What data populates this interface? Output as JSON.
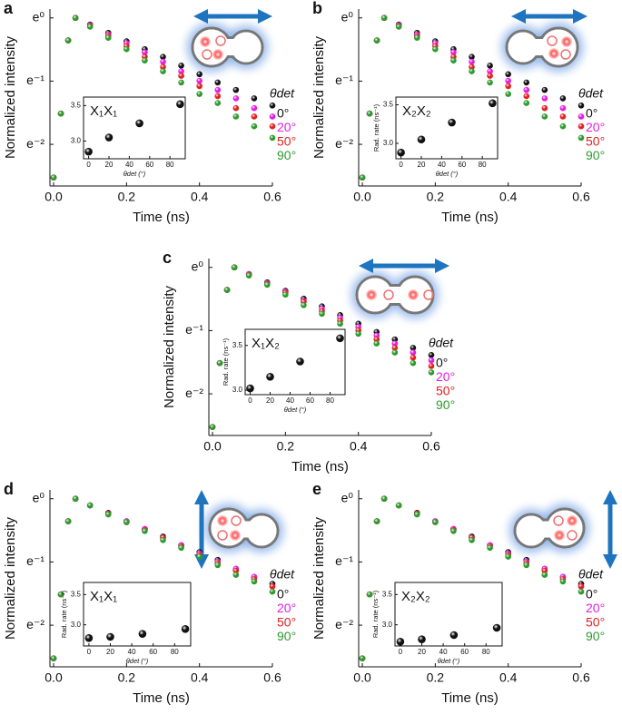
{
  "chart_data": [
    {
      "type": "scatter",
      "panel_label": "a",
      "x_label": "Time (ns)",
      "y_label": "Normalized intensity",
      "log_y": true,
      "xlim": [
        -0.01,
        0.6
      ],
      "xticks": [
        {
          "value": 0,
          "label": "0.0"
        },
        0.2,
        0.4,
        0.6
      ],
      "ylim": [
        0.07,
        1.15
      ],
      "yticks": [
        {
          "value": 1,
          "label": "e⁰"
        },
        {
          "value": 0.3679,
          "label": "e⁻¹"
        },
        {
          "value": 0.1353,
          "label": "e⁻²"
        }
      ],
      "legend_title": "θdet",
      "x": [
        0,
        0.02,
        0.04,
        0.06,
        0.1,
        0.15,
        0.2,
        0.25,
        0.3,
        0.35,
        0.4,
        0.45,
        0.5,
        0.55,
        0.6
      ],
      "series": [
        {
          "name": "0°",
          "color": "#111111",
          "values": [
            0.08,
            0.22,
            0.7,
            1.0,
            0.9,
            0.79,
            0.69,
            0.61,
            0.54,
            0.47,
            0.41,
            0.36,
            0.32,
            0.28,
            0.25
          ]
        },
        {
          "name": "20°",
          "color": "#e21de2",
          "values": [
            0.08,
            0.22,
            0.7,
            1.0,
            0.89,
            0.77,
            0.67,
            0.58,
            0.5,
            0.43,
            0.37,
            0.32,
            0.28,
            0.24,
            0.21
          ]
        },
        {
          "name": "50°",
          "color": "#e32020",
          "values": [
            0.08,
            0.22,
            0.7,
            1.0,
            0.88,
            0.75,
            0.64,
            0.54,
            0.46,
            0.4,
            0.34,
            0.29,
            0.24,
            0.21,
            0.18
          ]
        },
        {
          "name": "90°",
          "color": "#2e9a2e",
          "values": [
            0.08,
            0.22,
            0.7,
            1.0,
            0.87,
            0.73,
            0.61,
            0.51,
            0.43,
            0.36,
            0.3,
            0.26,
            0.21,
            0.18,
            0.15
          ]
        }
      ],
      "inset": {
        "title": "X₁X₁",
        "x_label": "θdet (°)",
        "x": [
          0,
          20,
          50,
          90
        ],
        "values": [
          2.85,
          3.05,
          3.25,
          3.52
        ],
        "xlim": [
          -5,
          95
        ],
        "xticks": [
          0,
          20,
          40,
          60,
          80
        ],
        "ylim": [
          2.75,
          3.62
        ],
        "yticks": [
          {
            "value": 3,
            "label": "3.0"
          },
          3.5
        ]
      }
    },
    {
      "type": "scatter",
      "panel_label": "b",
      "x_label": "Time (ns)",
      "y_label": "Normalized intensity",
      "log_y": true,
      "xlim": [
        -0.01,
        0.6
      ],
      "xticks": [
        {
          "value": 0,
          "label": "0.0"
        },
        0.2,
        0.4,
        0.6
      ],
      "ylim": [
        0.07,
        1.15
      ],
      "yticks": [
        {
          "value": 1,
          "label": "e⁰"
        },
        {
          "value": 0.3679,
          "label": "e⁻¹"
        },
        {
          "value": 0.1353,
          "label": "e⁻²"
        }
      ],
      "legend_title": "θdet",
      "x": [
        0,
        0.02,
        0.04,
        0.06,
        0.1,
        0.15,
        0.2,
        0.25,
        0.3,
        0.35,
        0.4,
        0.45,
        0.5,
        0.55,
        0.6
      ],
      "series": [
        {
          "name": "0°",
          "color": "#111111",
          "values": [
            0.08,
            0.22,
            0.7,
            1.0,
            0.9,
            0.79,
            0.69,
            0.61,
            0.54,
            0.47,
            0.41,
            0.36,
            0.32,
            0.28,
            0.25
          ]
        },
        {
          "name": "20°",
          "color": "#e21de2",
          "values": [
            0.08,
            0.22,
            0.7,
            1.0,
            0.89,
            0.77,
            0.67,
            0.58,
            0.5,
            0.43,
            0.37,
            0.32,
            0.28,
            0.24,
            0.21
          ]
        },
        {
          "name": "50°",
          "color": "#e32020",
          "values": [
            0.08,
            0.22,
            0.7,
            1.0,
            0.88,
            0.75,
            0.64,
            0.54,
            0.46,
            0.4,
            0.34,
            0.29,
            0.24,
            0.21,
            0.18
          ]
        },
        {
          "name": "90°",
          "color": "#2e9a2e",
          "values": [
            0.08,
            0.22,
            0.7,
            1.0,
            0.87,
            0.73,
            0.61,
            0.51,
            0.43,
            0.36,
            0.3,
            0.26,
            0.21,
            0.18,
            0.15
          ]
        }
      ],
      "inset": {
        "title": "X₂X₂",
        "x_label": "θdet (°)",
        "y_label": "Rad. rate (ns⁻¹)",
        "x": [
          0,
          20,
          50,
          90
        ],
        "values": [
          2.88,
          3.05,
          3.27,
          3.52
        ],
        "xlim": [
          -5,
          95
        ],
        "xticks": [
          0,
          20,
          40,
          60,
          80
        ],
        "ylim": [
          2.8,
          3.6
        ],
        "yticks": [
          {
            "value": 3,
            "label": "3.0"
          },
          3.5
        ]
      }
    },
    {
      "type": "scatter",
      "panel_label": "c",
      "x_label": "Time (ns)",
      "y_label": "Normalized intensity",
      "log_y": true,
      "xlim": [
        -0.01,
        0.6
      ],
      "xticks": [
        {
          "value": 0,
          "label": "0.0"
        },
        0.2,
        0.4,
        0.6
      ],
      "ylim": [
        0.07,
        1.15
      ],
      "yticks": [
        {
          "value": 1,
          "label": "e⁰"
        },
        {
          "value": 0.3679,
          "label": "e⁻¹"
        },
        {
          "value": 0.1353,
          "label": "e⁻²"
        }
      ],
      "legend_title": "θdet",
      "x": [
        0,
        0.02,
        0.04,
        0.06,
        0.1,
        0.15,
        0.2,
        0.25,
        0.3,
        0.35,
        0.4,
        0.45,
        0.5,
        0.55,
        0.6
      ],
      "series": [
        {
          "name": "0°",
          "color": "#111111",
          "values": [
            0.08,
            0.22,
            0.7,
            1.0,
            0.9,
            0.79,
            0.69,
            0.61,
            0.54,
            0.47,
            0.41,
            0.36,
            0.32,
            0.28,
            0.25
          ]
        },
        {
          "name": "20°",
          "color": "#e21de2",
          "values": [
            0.08,
            0.22,
            0.7,
            1.0,
            0.9,
            0.78,
            0.68,
            0.59,
            0.52,
            0.45,
            0.39,
            0.34,
            0.3,
            0.26,
            0.23
          ]
        },
        {
          "name": "50°",
          "color": "#e32020",
          "values": [
            0.08,
            0.22,
            0.7,
            1.0,
            0.89,
            0.77,
            0.67,
            0.58,
            0.5,
            0.43,
            0.37,
            0.32,
            0.28,
            0.24,
            0.21
          ]
        },
        {
          "name": "90°",
          "color": "#2e9a2e",
          "values": [
            0.08,
            0.22,
            0.7,
            1.0,
            0.88,
            0.76,
            0.65,
            0.55,
            0.48,
            0.41,
            0.35,
            0.3,
            0.26,
            0.22,
            0.19
          ]
        }
      ],
      "inset": {
        "title": "X₁X₂",
        "x_label": "θdet (°)",
        "y_label": "Rad. rate (ns⁻¹)",
        "x": [
          0,
          20,
          50,
          90
        ],
        "values": [
          3.02,
          3.15,
          3.32,
          3.58
        ],
        "xlim": [
          -5,
          95
        ],
        "xticks": [
          0,
          20,
          40,
          60,
          80
        ],
        "ylim": [
          2.95,
          3.68
        ],
        "yticks": [
          {
            "value": 3,
            "label": "3.0"
          },
          3.5
        ]
      }
    },
    {
      "type": "scatter",
      "panel_label": "d",
      "x_label": "Time (ns)",
      "y_label": "Normalized intensity",
      "log_y": true,
      "xlim": [
        -0.01,
        0.6
      ],
      "xticks": [
        {
          "value": 0,
          "label": "0.0"
        },
        0.2,
        0.4,
        0.6
      ],
      "ylim": [
        0.07,
        1.15
      ],
      "yticks": [
        {
          "value": 1,
          "label": "e⁰"
        },
        {
          "value": 0.3679,
          "label": "e⁻¹"
        },
        {
          "value": 0.1353,
          "label": "e⁻²"
        }
      ],
      "legend_title": "θdet",
      "x": [
        0,
        0.02,
        0.04,
        0.06,
        0.1,
        0.15,
        0.2,
        0.25,
        0.3,
        0.35,
        0.4,
        0.45,
        0.5,
        0.55,
        0.6
      ],
      "series": [
        {
          "name": "0°",
          "color": "#111111",
          "values": [
            0.08,
            0.22,
            0.7,
            1.0,
            0.9,
            0.8,
            0.7,
            0.62,
            0.55,
            0.48,
            0.43,
            0.38,
            0.33,
            0.29,
            0.26
          ]
        },
        {
          "name": "20°",
          "color": "#e21de2",
          "values": [
            0.08,
            0.22,
            0.7,
            1.0,
            0.9,
            0.79,
            0.7,
            0.62,
            0.54,
            0.48,
            0.42,
            0.37,
            0.33,
            0.29,
            0.25
          ]
        },
        {
          "name": "50°",
          "color": "#e32020",
          "values": [
            0.08,
            0.22,
            0.7,
            1.0,
            0.9,
            0.79,
            0.69,
            0.61,
            0.54,
            0.47,
            0.41,
            0.36,
            0.32,
            0.28,
            0.25
          ]
        },
        {
          "name": "90°",
          "color": "#2e9a2e",
          "values": [
            0.08,
            0.22,
            0.7,
            1.0,
            0.9,
            0.78,
            0.69,
            0.6,
            0.52,
            0.46,
            0.4,
            0.35,
            0.3,
            0.27,
            0.23
          ]
        }
      ],
      "inset": {
        "title": "X₁X₁",
        "x_label": "θdet (°)",
        "y_label": "Rad. rate (ns⁻¹)",
        "x": [
          0,
          20,
          50,
          90
        ],
        "values": [
          2.78,
          2.8,
          2.85,
          2.93
        ],
        "xlim": [
          -5,
          95
        ],
        "xticks": [
          0,
          20,
          40,
          60,
          80
        ],
        "ylim": [
          2.65,
          3.7
        ],
        "yticks": [
          {
            "value": 3,
            "label": "3.0"
          },
          3.5
        ]
      }
    },
    {
      "type": "scatter",
      "panel_label": "e",
      "x_label": "Time (ns)",
      "y_label": "Normalized intensity",
      "log_y": true,
      "xlim": [
        -0.01,
        0.6
      ],
      "xticks": [
        {
          "value": 0,
          "label": "0.0"
        },
        0.2,
        0.4,
        0.6
      ],
      "ylim": [
        0.07,
        1.15
      ],
      "yticks": [
        {
          "value": 1,
          "label": "e⁰"
        },
        {
          "value": 0.3679,
          "label": "e⁻¹"
        },
        {
          "value": 0.1353,
          "label": "e⁻²"
        }
      ],
      "legend_title": "θdet",
      "x": [
        0,
        0.02,
        0.04,
        0.06,
        0.1,
        0.15,
        0.2,
        0.25,
        0.3,
        0.35,
        0.4,
        0.45,
        0.5,
        0.55,
        0.6
      ],
      "series": [
        {
          "name": "0°",
          "color": "#111111",
          "values": [
            0.08,
            0.22,
            0.7,
            1.0,
            0.9,
            0.8,
            0.7,
            0.62,
            0.55,
            0.48,
            0.43,
            0.38,
            0.33,
            0.29,
            0.26
          ]
        },
        {
          "name": "20°",
          "color": "#e21de2",
          "values": [
            0.08,
            0.22,
            0.7,
            1.0,
            0.9,
            0.79,
            0.7,
            0.62,
            0.54,
            0.48,
            0.42,
            0.37,
            0.33,
            0.29,
            0.25
          ]
        },
        {
          "name": "50°",
          "color": "#e32020",
          "values": [
            0.08,
            0.22,
            0.7,
            1.0,
            0.9,
            0.79,
            0.69,
            0.61,
            0.54,
            0.47,
            0.41,
            0.36,
            0.32,
            0.28,
            0.25
          ]
        },
        {
          "name": "90°",
          "color": "#2e9a2e",
          "values": [
            0.08,
            0.22,
            0.7,
            1.0,
            0.9,
            0.78,
            0.69,
            0.6,
            0.52,
            0.46,
            0.4,
            0.35,
            0.3,
            0.27,
            0.23
          ]
        }
      ],
      "inset": {
        "title": "X₂X₂",
        "x_label": "θdet (°)",
        "y_label": "Rad. rate (ns⁻¹)",
        "x": [
          0,
          20,
          50,
          90
        ],
        "values": [
          2.72,
          2.76,
          2.83,
          2.95
        ],
        "xlim": [
          -5,
          95
        ],
        "xticks": [
          0,
          20,
          40,
          60,
          80
        ],
        "ylim": [
          2.65,
          3.7
        ],
        "yticks": [
          {
            "value": 3,
            "label": "3.0"
          },
          3.5
        ]
      }
    }
  ]
}
